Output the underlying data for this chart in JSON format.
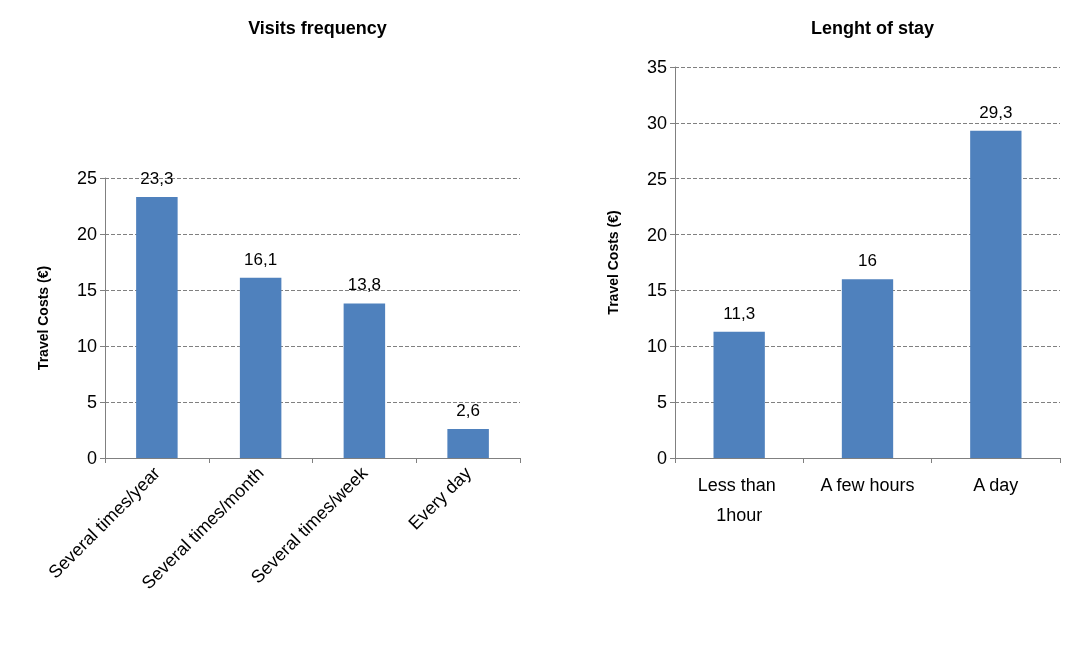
{
  "chart_data": [
    {
      "type": "bar",
      "title": "Visits frequency",
      "ylabel": "Travel Costs (€)",
      "categories": [
        "Several times/year",
        "Several times/month",
        "Several times/week",
        "Every day"
      ],
      "values": [
        23.3,
        16.1,
        13.8,
        2.6
      ],
      "value_labels": [
        "23,3",
        "16,1",
        "13,8",
        "2,6"
      ],
      "color": "#4f81bd",
      "ylim": [
        0,
        25
      ],
      "yticks": [
        0,
        5,
        10,
        15,
        20,
        25
      ],
      "grid": "y"
    },
    {
      "type": "bar",
      "title": "Lenght of stay",
      "ylabel": "Travel Costs (€)",
      "categories": [
        "Less than 1hour",
        "A few hours",
        "A day"
      ],
      "values": [
        11.3,
        16,
        29.3
      ],
      "value_labels": [
        "11,3",
        "16",
        "29,3"
      ],
      "color": "#4f81bd",
      "ylim": [
        0,
        35
      ],
      "yticks": [
        0,
        5,
        10,
        15,
        20,
        25,
        30,
        35
      ],
      "grid": "y"
    }
  ]
}
